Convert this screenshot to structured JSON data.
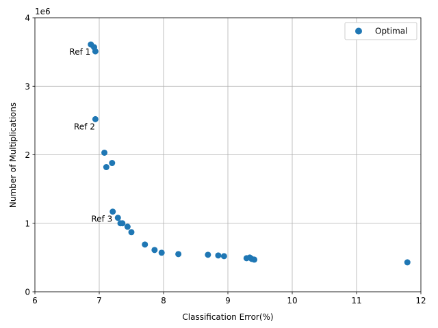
{
  "chart_data": {
    "type": "scatter",
    "xlabel": "Classification Error(%)",
    "ylabel": "Number of Multiplications",
    "y_offset_label": "1e6",
    "xlim": [
      6,
      12
    ],
    "ylim": [
      0,
      4000000
    ],
    "x_ticks": [
      6,
      7,
      8,
      9,
      10,
      11,
      12
    ],
    "y_ticks": [
      0,
      1000000,
      2000000,
      3000000,
      4000000
    ],
    "x_tick_labels": [
      "6",
      "7",
      "8",
      "9",
      "10",
      "11",
      "12"
    ],
    "y_tick_labels": [
      "0",
      "1",
      "2",
      "3",
      "4"
    ],
    "grid": true,
    "legend": {
      "position": "top-right",
      "entries": [
        "Optimal"
      ]
    },
    "color": "#1f77b4",
    "series": [
      {
        "name": "Optimal",
        "x": [
          6.87,
          6.92,
          6.94,
          6.94,
          7.08,
          7.11,
          7.2,
          7.21,
          7.29,
          7.33,
          7.36,
          7.44,
          7.5,
          7.71,
          7.86,
          7.97,
          8.23,
          8.69,
          8.85,
          8.94,
          9.29,
          9.34,
          9.37,
          9.41,
          11.79
        ],
        "y": [
          3610000,
          3570000,
          3510000,
          2520000,
          2030000,
          1820000,
          1880000,
          1170000,
          1080000,
          1000000,
          1000000,
          950000,
          870000,
          690000,
          610000,
          570000,
          550000,
          540000,
          530000,
          520000,
          490000,
          500000,
          480000,
          470000,
          430000
        ]
      }
    ],
    "annotations": [
      {
        "text": "Ref 1",
        "x": 6.87,
        "y": 3610000
      },
      {
        "text": "Ref 2",
        "x": 6.94,
        "y": 2520000
      },
      {
        "text": "Ref 3",
        "x": 7.21,
        "y": 1170000
      }
    ]
  }
}
